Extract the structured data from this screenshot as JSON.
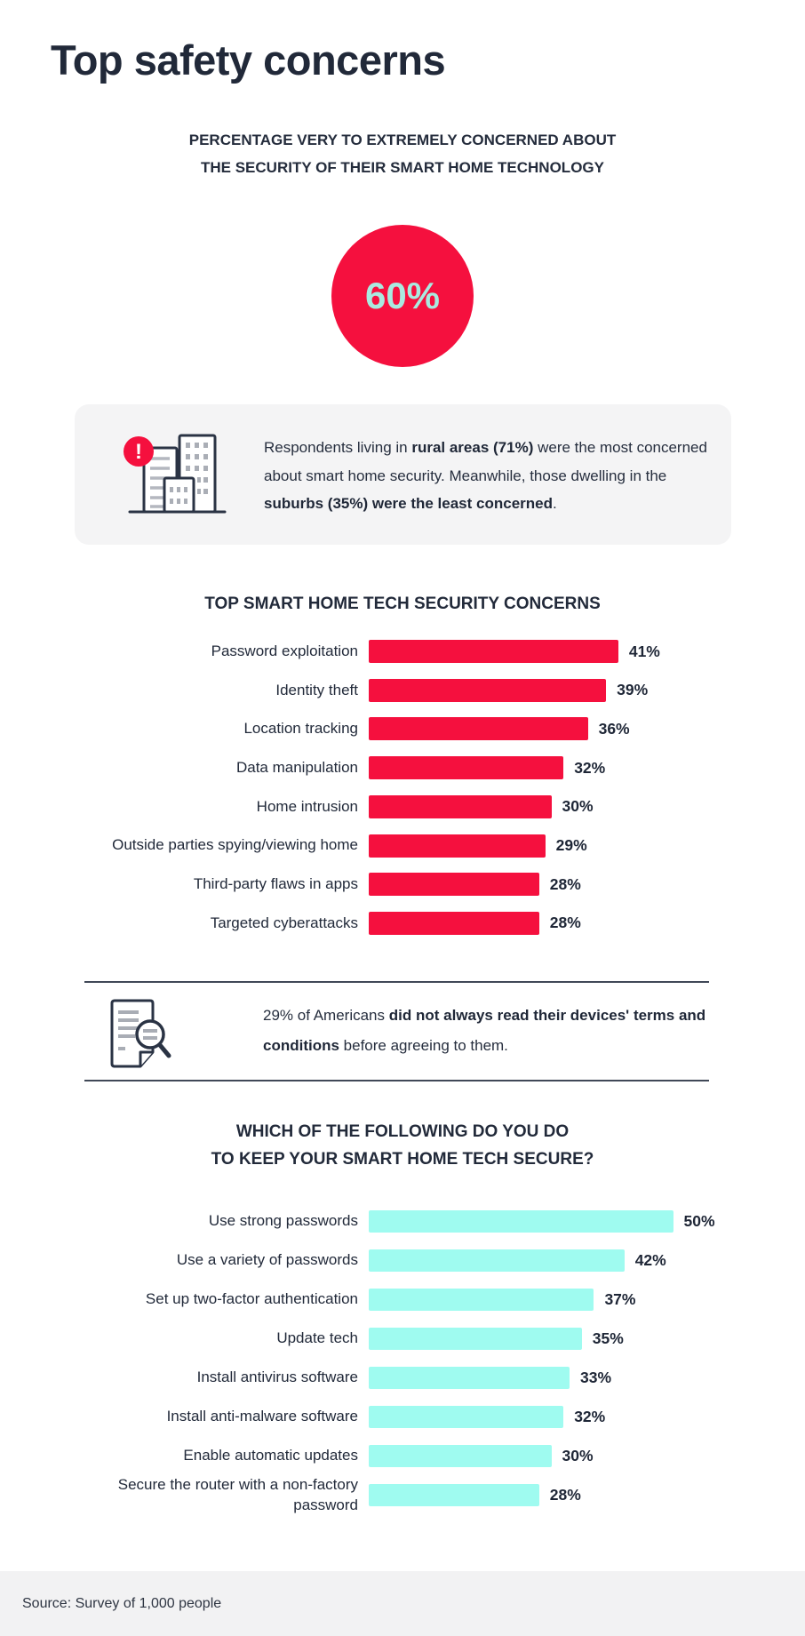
{
  "page": {
    "title": "Top safety concerns"
  },
  "subtitle": {
    "line1": "PERCENTAGE VERY TO EXTREMELY CONCERNED ABOUT",
    "line2": "THE SECURITY OF THEIR SMART HOME TECHNOLOGY"
  },
  "stat_circle": {
    "value": "60%",
    "circle_color": "#f5103e",
    "text_color": "#a9eae0"
  },
  "callouts": [
    {
      "icon": "alert-buildings-icon",
      "segments": [
        {
          "text": "Respondents living in ",
          "bold": false
        },
        {
          "text": "rural areas (71%)",
          "bold": true
        },
        {
          "text": " were the most concerned about smart home security. Meanwhile, those dwelling in the ",
          "bold": false
        },
        {
          "text": "suburbs (35%) were the least concerned",
          "bold": true
        },
        {
          "text": ".",
          "bold": false
        }
      ]
    },
    {
      "icon": "document-magnifier-icon",
      "segments": [
        {
          "text": "29% of Americans ",
          "bold": false
        },
        {
          "text": "did not always read their devices' terms and conditions",
          "bold": true
        },
        {
          "text": " before agreeing to them.",
          "bold": false
        }
      ]
    }
  ],
  "footer": {
    "source": "Source: Survey of 1,000 people"
  },
  "colors": {
    "accent_red": "#f5103e",
    "accent_cyan": "#9ffbf0",
    "dark_navy": "#222a3a",
    "callout_bg": "#f4f4f5",
    "footer_bg": "#f2f2f3"
  },
  "chart_data": [
    {
      "type": "bar",
      "orientation": "horizontal",
      "title": "TOP SMART HOME TECH SECURITY CONCERNS",
      "title_lines": [
        "TOP SMART HOME TECH SECURITY CONCERNS"
      ],
      "categories": [
        "Password exploitation",
        "Identity theft",
        "Location tracking",
        "Data manipulation",
        "Home intrusion",
        "Outside parties spying/viewing home",
        "Third-party flaws in apps",
        "Targeted cyberattacks"
      ],
      "values": [
        41,
        39,
        36,
        32,
        30,
        29,
        28,
        28
      ],
      "value_suffix": "%",
      "bar_color": "#f5103e",
      "xlim": [
        0,
        50
      ],
      "grid": false,
      "value_labels": "end-of-bar"
    },
    {
      "type": "bar",
      "orientation": "horizontal",
      "title": "WHICH OF THE FOLLOWING DO YOU DO TO KEEP YOUR SMART HOME TECH SECURE?",
      "title_lines": [
        "WHICH OF THE FOLLOWING DO YOU DO",
        "TO KEEP YOUR SMART HOME TECH SECURE?"
      ],
      "categories": [
        "Use strong passwords",
        "Use a variety of passwords",
        "Set up two-factor authentication",
        "Update tech",
        "Install antivirus software",
        "Install anti-malware software",
        "Enable automatic updates",
        "Secure the router with a non-factory password"
      ],
      "values": [
        50,
        42,
        37,
        35,
        33,
        32,
        30,
        28
      ],
      "value_suffix": "%",
      "bar_color": "#9ffbf0",
      "xlim": [
        0,
        55
      ],
      "grid": false,
      "value_labels": "end-of-bar"
    }
  ]
}
